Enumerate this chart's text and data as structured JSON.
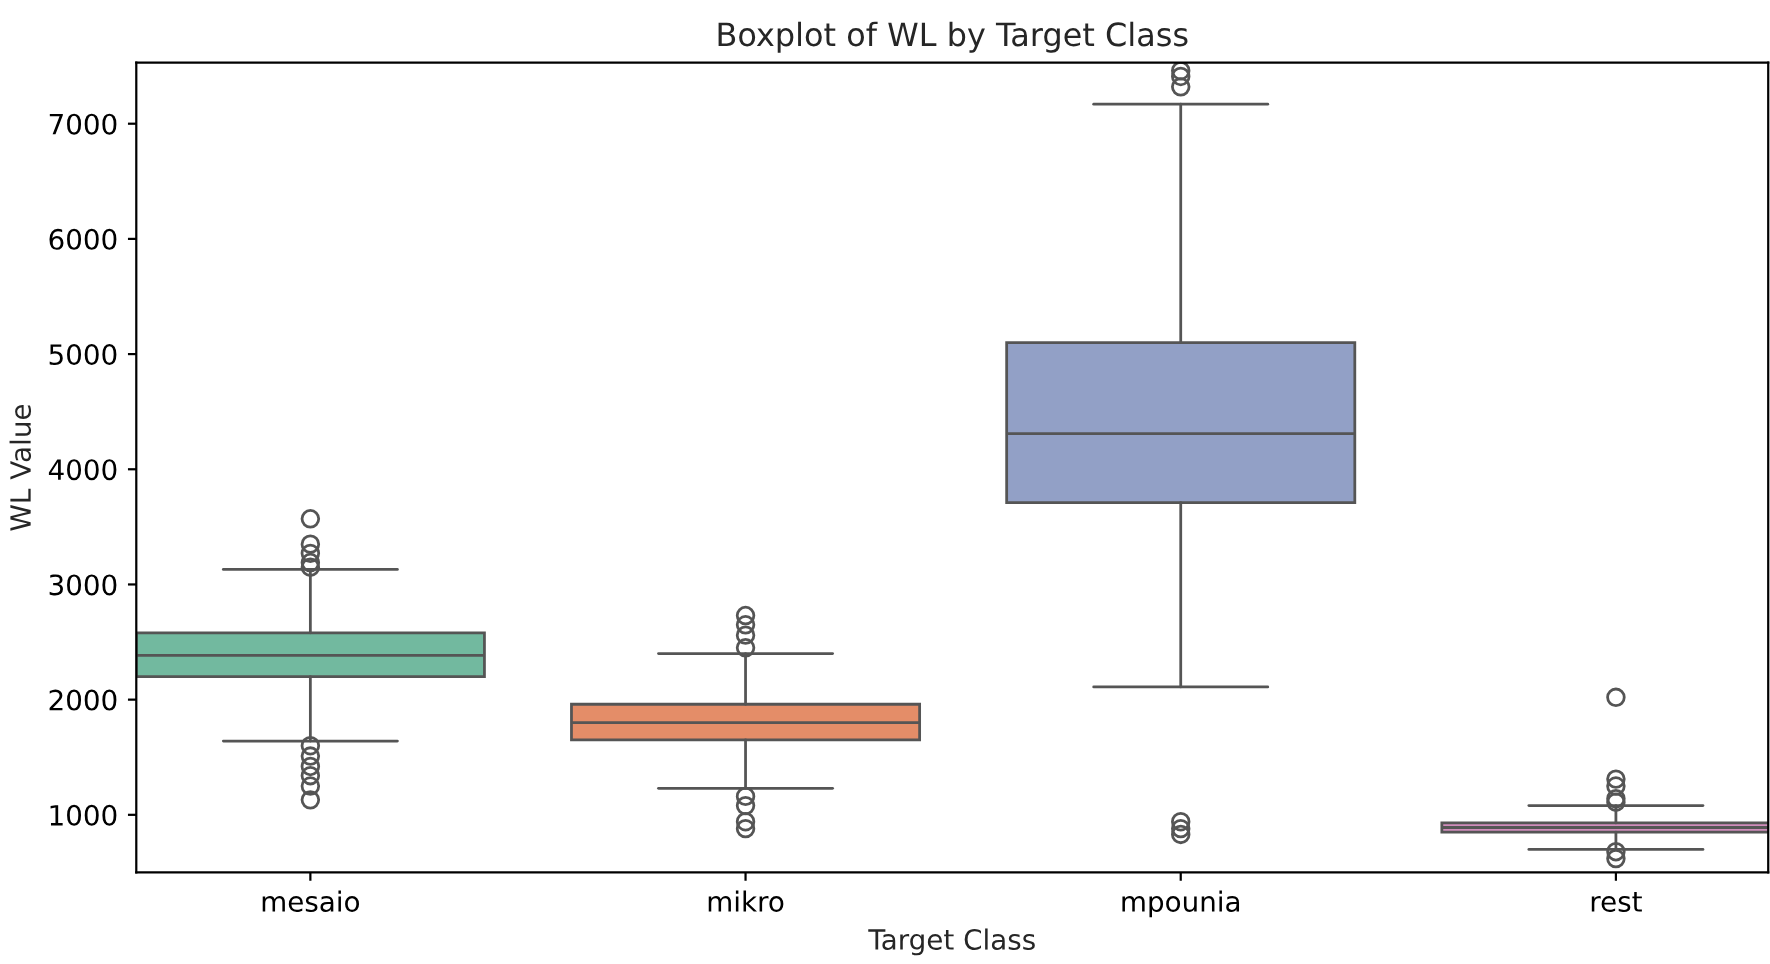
{
  "chart_data": {
    "type": "box",
    "title": "Boxplot of WL by Target Class",
    "xlabel": "Target Class",
    "ylabel": "WL Value",
    "categories": [
      "mesaio",
      "mikro",
      "mpounia",
      "rest"
    ],
    "colors": [
      "#72b99f",
      "#e48d68",
      "#92a0c6",
      "#d08cbb"
    ],
    "boxes": [
      {
        "low": 1640,
        "q1": 2200,
        "median": 2385,
        "q3": 2580,
        "high": 3130,
        "outliers": [
          3570,
          3350,
          3270,
          3190,
          3150,
          1600,
          1510,
          1420,
          1340,
          1250,
          1130
        ]
      },
      {
        "low": 1230,
        "q1": 1650,
        "median": 1800,
        "q3": 1960,
        "high": 2400,
        "outliers": [
          2730,
          2650,
          2560,
          2450,
          1160,
          1080,
          940,
          880
        ]
      },
      {
        "low": 2110,
        "q1": 3710,
        "median": 4310,
        "q3": 5100,
        "high": 7170,
        "outliers": [
          7460,
          7410,
          7320,
          940,
          880,
          830
        ]
      },
      {
        "low": 700,
        "q1": 850,
        "median": 890,
        "q3": 930,
        "high": 1080,
        "outliers": [
          2020,
          1310,
          1250,
          1140,
          1110,
          680,
          620
        ]
      }
    ],
    "ylim": [
      500,
      7530
    ],
    "yticks": [
      1000,
      2000,
      3000,
      4000,
      5000,
      6000,
      7000
    ],
    "grid": false
  }
}
